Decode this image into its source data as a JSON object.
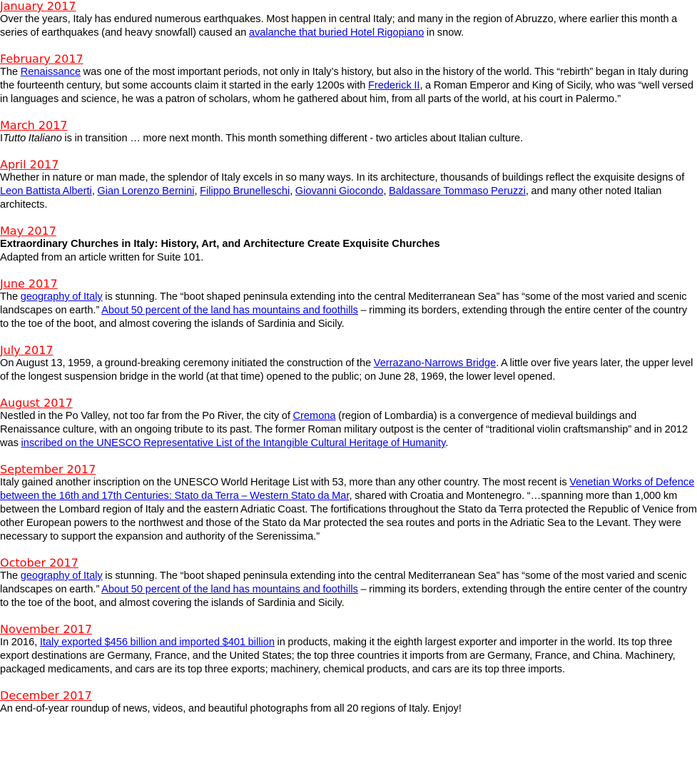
{
  "entries": [
    {
      "month": "January 2017",
      "parts": [
        {
          "t": " Over the years, Italy has endured numerous earthquakes. Most happen in central Italy; and many in the region of Abruzzo, where earlier this month a series of earthquakes (and heavy snowfall) caused an "
        },
        {
          "link": "avalanche that buried Hotel Rigopiano"
        },
        {
          "t": " in snow."
        }
      ]
    },
    {
      "month": "February 2017",
      "parts": [
        {
          "t": " The "
        },
        {
          "link": "Renaissance"
        },
        {
          "t": " was one of the most important periods, not only in Italy’s history, but also in the history of the world. This “rebirth” began in Italy during the fourteenth century, but some accounts claim it started in the early 1200s with "
        },
        {
          "link": "Frederick II"
        },
        {
          "t": ", a Roman Emperor and King of Sicily, who was “well versed in languages and science, he was a patron of scholars, whom he gathered about him, from all parts of the world, at his court in Palermo.”"
        }
      ]
    },
    {
      "month": "March 2017",
      "parts": [
        {
          "t": " I"
        },
        {
          "em": "Tutto Italiano"
        },
        {
          "t": " is in transition … more next month. This month something different - two articles about Italian culture."
        }
      ]
    },
    {
      "month": "April 2017",
      "parts": [
        {
          "t": " Whether in nature or man made, the splendor of Italy excels in so many ways. In its architecture, thousands of buildings reflect the exquisite designs of "
        },
        {
          "link": "Leon Battista Alberti"
        },
        {
          "t": ", "
        },
        {
          "link": "Gian Lorenzo Bernini"
        },
        {
          "t": ", "
        },
        {
          "link": "Filippo Brunelleschi"
        },
        {
          "t": ", "
        },
        {
          "link": "Giovanni Giocondo"
        },
        {
          "t": ", "
        },
        {
          "link": "Baldassare Tommaso Peruzzi"
        },
        {
          "t": ", and many other noted Italian architects."
        }
      ]
    },
    {
      "month": "May 2017",
      "headline": "Extraordinary Churches in Italy: History, Art, and Architecture Create Exquisite Churches",
      "parts": [
        {
          "t": "Adapted from an article written for Suite 101."
        }
      ]
    },
    {
      "month": "June 2017",
      "parts": [
        {
          "t": " The "
        },
        {
          "link": "geography of Italy"
        },
        {
          "t": " is stunning. The “boot shaped peninsula extending into the central Mediterranean Sea” has “some of the most varied and scenic landscapes on earth.” "
        },
        {
          "link": "About 50 percent of the land has mountains and foothills"
        },
        {
          "t": " – rimming its borders, extending through the entire center of the country to the toe of the boot, and almost covering the islands of Sardinia and Sicily."
        }
      ]
    },
    {
      "month": "July 2017",
      "parts": [
        {
          "t": " On August 13, 1959, a ground-breaking ceremony initiated the construction of the "
        },
        {
          "link": "Verrazano-Narrows Bridge"
        },
        {
          "t": ". A little over five years later, the upper level of the longest suspension bridge in the world (at that time) opened to the public; on June 28, 1969, the lower level opened."
        }
      ]
    },
    {
      "month": "August 2017",
      "parts": [
        {
          "t": " Nestled in the Po Valley, not too far from the Po River, the city of "
        },
        {
          "link": "Cremona"
        },
        {
          "t": " (region of Lombardia) is a convergence of medieval buildings and Renaissance culture, with an ongoing tribute to its past. The former Roman military outpost is the center of “traditional violin craftsmanship” and in 2012 was "
        },
        {
          "link": "inscribed on the UNESCO Representative List of the Intangible Cultural Heritage of Humanity"
        },
        {
          "t": "."
        }
      ]
    },
    {
      "month": "September 2017",
      "parts": [
        {
          "t": "  Italy gained another inscription on the UNESCO World Heritage List with 53, more than any other country. The most recent is "
        },
        {
          "link": "Venetian Works of Defence between the 16th and 17th Centuries: Stato da Terra – Western Stato da Mar"
        },
        {
          "t": ", shared with Croatia and Montenegro. “…spanning more than 1,000 km between the Lombard region of Italy and the eastern Adriatic Coast. The fortifications throughout the Stato da Terra protected the Republic of Venice from other European powers to the northwest and those of the Stato da Mar protected the sea routes and ports in the Adriatic Sea to the Levant. They were necessary to support the expansion and authority of the Serenissima.”"
        }
      ]
    },
    {
      "month": "October 2017",
      "parts": [
        {
          "t": " The "
        },
        {
          "link": "geography of Italy"
        },
        {
          "t": " is stunning. The “boot shaped peninsula extending into the central Mediterranean Sea” has “some of the most varied and scenic landscapes on earth.” "
        },
        {
          "link": "About 50 percent of the land has mountains and foothills"
        },
        {
          "t": " – rimming its borders, extending through the entire center of the country to the toe of the boot, and almost covering the islands of Sardinia and Sicily."
        }
      ]
    },
    {
      "month": "November 2017",
      "parts": [
        {
          "t": " In 2016, "
        },
        {
          "link": "Italy exported $456 billion and imported $401 billion"
        },
        {
          "t": " in products, making it the eighth largest exporter and importer in the world. Its top three export destinations are Germany, France, and the United States; the top three countries it imports from are Germany, France, and China. Machinery, packaged medicaments, and cars are its top three exports; machinery, chemical products, and cars are its top three imports."
        }
      ]
    },
    {
      "month": "December 2017",
      "parts": [
        {
          "t": " An end-of-year roundup of news, videos, and beautiful photographs from all 20 regions of Italy. Enjoy!"
        }
      ]
    }
  ],
  "colors": {
    "month_link": "#ff0000",
    "body_link": "#0000ee",
    "text": "#000000"
  }
}
